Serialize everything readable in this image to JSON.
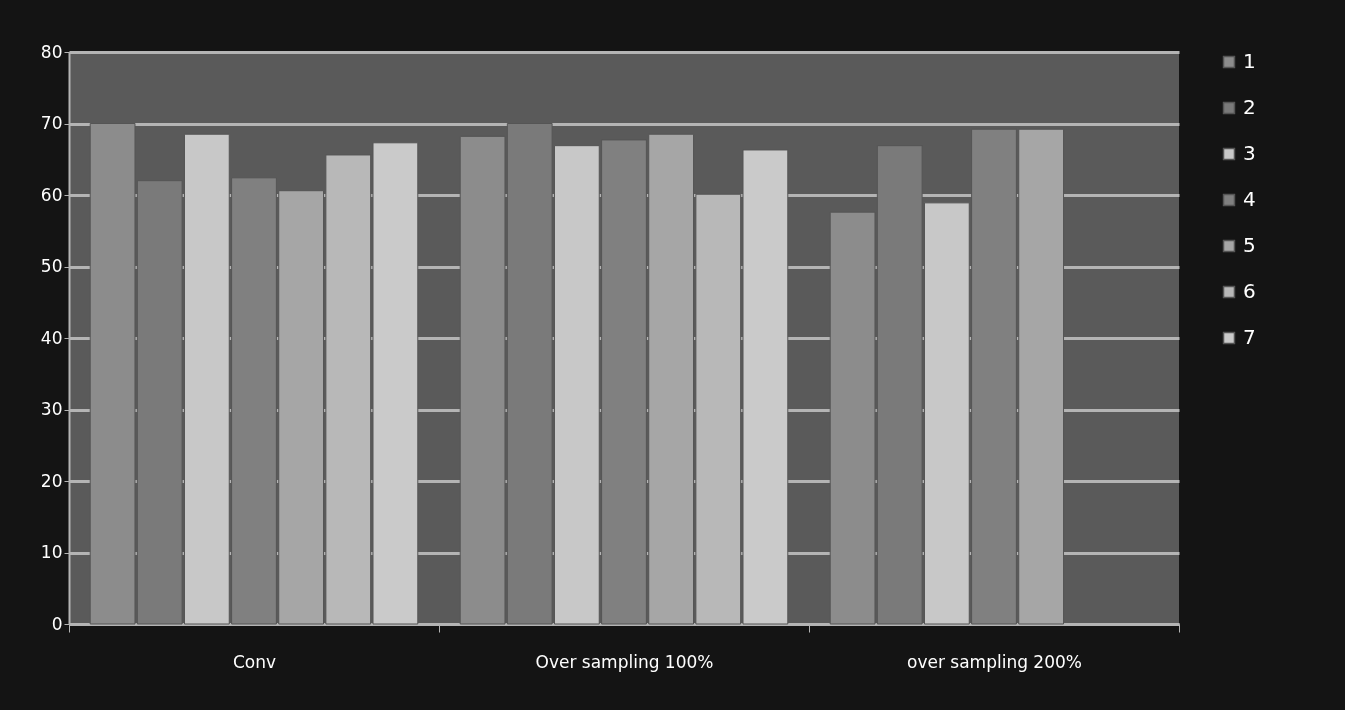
{
  "chart_data": {
    "type": "bar",
    "categories": [
      "Conv",
      "Over sampling 100%",
      "over sampling 200%"
    ],
    "series": [
      {
        "name": "1",
        "color": "#8c8c8c",
        "values": [
          70,
          68.2,
          57.6
        ]
      },
      {
        "name": "2",
        "color": "#7a7a7a",
        "values": [
          62,
          70,
          66.9
        ]
      },
      {
        "name": "3",
        "color": "#c8c8c8",
        "values": [
          68.5,
          66.9,
          58.9
        ]
      },
      {
        "name": "4",
        "color": "#808080",
        "values": [
          62.4,
          67.7,
          69.2
        ]
      },
      {
        "name": "5",
        "color": "#a6a6a6",
        "values": [
          60.6,
          68.5,
          69.2
        ]
      },
      {
        "name": "6",
        "color": "#b8b8b8",
        "values": [
          65.6,
          60.1,
          null
        ]
      },
      {
        "name": "7",
        "color": "#cacaca",
        "values": [
          67.3,
          66.3,
          null
        ]
      }
    ],
    "ylim": [
      0,
      80
    ],
    "yticks": [
      0,
      10,
      20,
      30,
      40,
      50,
      60,
      70,
      80
    ],
    "grid": "y",
    "legend": "right"
  }
}
